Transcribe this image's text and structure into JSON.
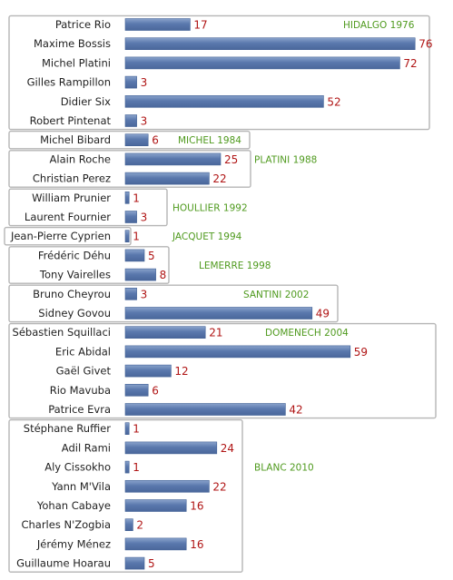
{
  "chart_data": {
    "type": "bar",
    "orientation": "horizontal",
    "value_labels": true,
    "axis_visible": false,
    "grid": false,
    "colors": {
      "bar": "#5a78ad",
      "bar_light": "#8aa3cc",
      "value_label": "#b01515",
      "group_label": "#4f9a1e",
      "group_box": "#b5b5b5"
    },
    "groups": [
      {
        "label": "HIDALGO 1976",
        "items": [
          {
            "name": "Patrice Rio",
            "value": 17
          },
          {
            "name": "Maxime Bossis",
            "value": 76
          },
          {
            "name": "Michel Platini",
            "value": 72
          },
          {
            "name": "Gilles Rampillon",
            "value": 3
          },
          {
            "name": "Didier Six",
            "value": 52
          },
          {
            "name": "Robert Pintenat",
            "value": 3
          }
        ]
      },
      {
        "label": "MICHEL 1984",
        "items": [
          {
            "name": "Michel Bibard",
            "value": 6
          }
        ]
      },
      {
        "label": "PLATINI 1988",
        "items": [
          {
            "name": "Alain Roche",
            "value": 25
          },
          {
            "name": "Christian Perez",
            "value": 22
          }
        ]
      },
      {
        "label": "HOULLIER 1992",
        "items": [
          {
            "name": "William Prunier",
            "value": 1
          },
          {
            "name": "Laurent Fournier",
            "value": 3
          }
        ]
      },
      {
        "label": "JACQUET 1994",
        "items": [
          {
            "name": "Jean-Pierre Cyprien",
            "value": 1
          }
        ]
      },
      {
        "label": "LEMERRE 1998",
        "items": [
          {
            "name": "Frédéric Déhu",
            "value": 5
          },
          {
            "name": "Tony Vairelles",
            "value": 8
          }
        ]
      },
      {
        "label": "SANTINI 2002",
        "items": [
          {
            "name": "Bruno Cheyrou",
            "value": 3
          },
          {
            "name": "Sidney Govou",
            "value": 49
          }
        ]
      },
      {
        "label": "DOMENECH 2004",
        "items": [
          {
            "name": "Sébastien Squillaci",
            "value": 21
          },
          {
            "name": "Eric Abidal",
            "value": 59
          },
          {
            "name": "Gaël Givet",
            "value": 12
          },
          {
            "name": "Rio Mavuba",
            "value": 6
          },
          {
            "name": "Patrice Evra",
            "value": 42
          }
        ]
      },
      {
        "label": "BLANC 2010",
        "items": [
          {
            "name": "Stéphane Ruffier",
            "value": 1
          },
          {
            "name": "Adil Rami",
            "value": 24
          },
          {
            "name": "Aly Cissokho",
            "value": 1
          },
          {
            "name": "Yann M'Vila",
            "value": 22
          },
          {
            "name": "Yohan Cabaye",
            "value": 16
          },
          {
            "name": "Charles N'Zogbia",
            "value": 2
          },
          {
            "name": "Jérémy Ménez",
            "value": 16
          },
          {
            "name": "Guillaume Hoarau",
            "value": 5
          }
        ]
      }
    ]
  }
}
